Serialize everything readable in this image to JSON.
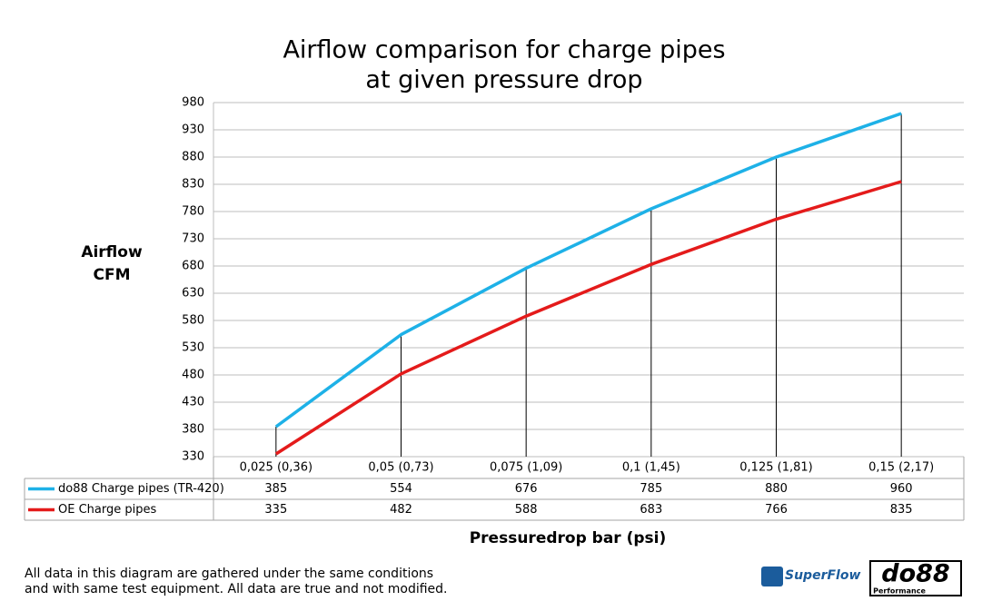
{
  "chart_data": {
    "type": "line",
    "title": [
      "Airflow comparison for charge pipes",
      "at given pressure drop"
    ],
    "ylabel": [
      "Airflow",
      "CFM"
    ],
    "xlabel": "Pressuredrop bar (psi)",
    "categories": [
      "0,025 (0,36)",
      "0,05 (0,73)",
      "0,075 (1,09)",
      "0,1 (1,45)",
      "0,125 (1,81)",
      "0,15 (2,17)"
    ],
    "series": [
      {
        "name": "do88 Charge pipes (TR-420)",
        "color": "#1eb1e7",
        "values": [
          385,
          554,
          676,
          785,
          880,
          960
        ]
      },
      {
        "name": "OE Charge pipes",
        "color": "#e41b1b",
        "values": [
          335,
          482,
          588,
          683,
          766,
          835
        ]
      }
    ],
    "ylim": [
      330,
      980
    ],
    "yticks": [
      330,
      380,
      430,
      480,
      530,
      580,
      630,
      680,
      730,
      780,
      830,
      880,
      930,
      980
    ],
    "grid": true,
    "footnote": [
      "All data in this diagram are gathered under the same conditions",
      "and with same test equipment. All data are true and not modified."
    ],
    "logos": {
      "superflow": "SuperFlow",
      "do88": "do88",
      "do88_sub": "Performance"
    }
  }
}
